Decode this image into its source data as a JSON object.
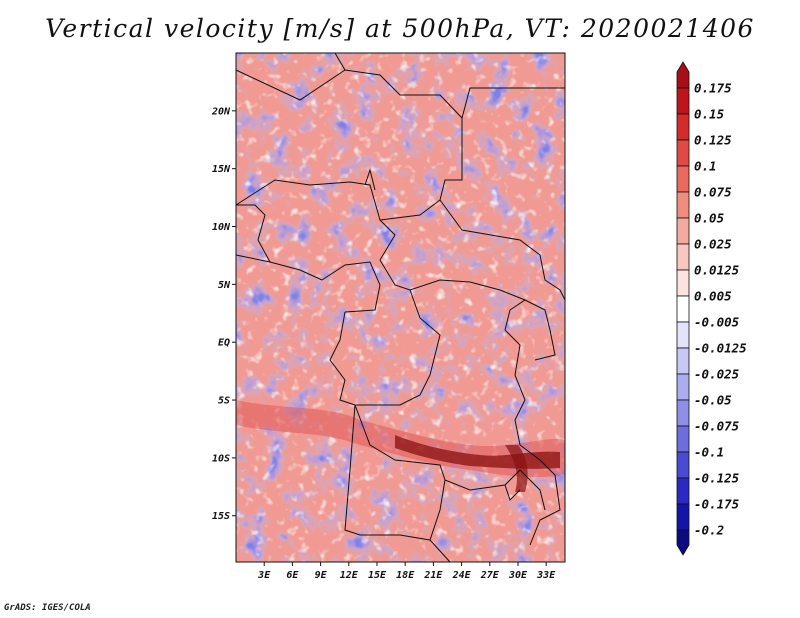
{
  "title": "Vertical velocity [m/s] at 500hPa, VT: 2020021406",
  "credit": "GrADS: IGES/COLA",
  "map": {
    "lat_labels": [
      {
        "label": "20N",
        "lat": 20
      },
      {
        "label": "15N",
        "lat": 15
      },
      {
        "label": "10N",
        "lat": 10
      },
      {
        "label": "5N",
        "lat": 5
      },
      {
        "label": "EQ",
        "lat": 0
      },
      {
        "label": "5S",
        "lat": -5
      },
      {
        "label": "10S",
        "lat": -10
      },
      {
        "label": "15S",
        "lat": -15
      }
    ],
    "lon_labels": [
      {
        "label": "3E",
        "lon": 3
      },
      {
        "label": "6E",
        "lon": 6
      },
      {
        "label": "9E",
        "lon": 9
      },
      {
        "label": "12E",
        "lon": 12
      },
      {
        "label": "15E",
        "lon": 15
      },
      {
        "label": "18E",
        "lon": 18
      },
      {
        "label": "21E",
        "lon": 21
      },
      {
        "label": "24E",
        "lon": 24
      },
      {
        "label": "27E",
        "lon": 27
      },
      {
        "label": "30E",
        "lon": 30
      },
      {
        "label": "33E",
        "lon": 33
      }
    ],
    "lon_range": [
      0,
      35
    ],
    "lat_range": [
      -19,
      25
    ]
  },
  "colorbar": {
    "labels": [
      "0.175",
      "0.15",
      "0.125",
      "0.1",
      "0.075",
      "0.05",
      "0.025",
      "0.0125",
      "0.005",
      "-0.005",
      "-0.0125",
      "-0.025",
      "-0.05",
      "-0.075",
      "-0.1",
      "-0.125",
      "-0.175",
      "-0.2"
    ],
    "colors": [
      "#a50f15",
      "#c0141c",
      "#d42b2b",
      "#e04a42",
      "#ea6b5d",
      "#f08d7f",
      "#f5aaa0",
      "#f8c8c0",
      "#fbe3de",
      "#ffffff",
      "#e3e3fb",
      "#c8c8f6",
      "#acacf0",
      "#8f8fe8",
      "#6d6dde",
      "#4a4ad2",
      "#2a2ac2",
      "#1414a8",
      "#0c0c80"
    ]
  },
  "colors": {
    "base_field": "#b9b9ef",
    "positive_band": "#8a1010"
  }
}
